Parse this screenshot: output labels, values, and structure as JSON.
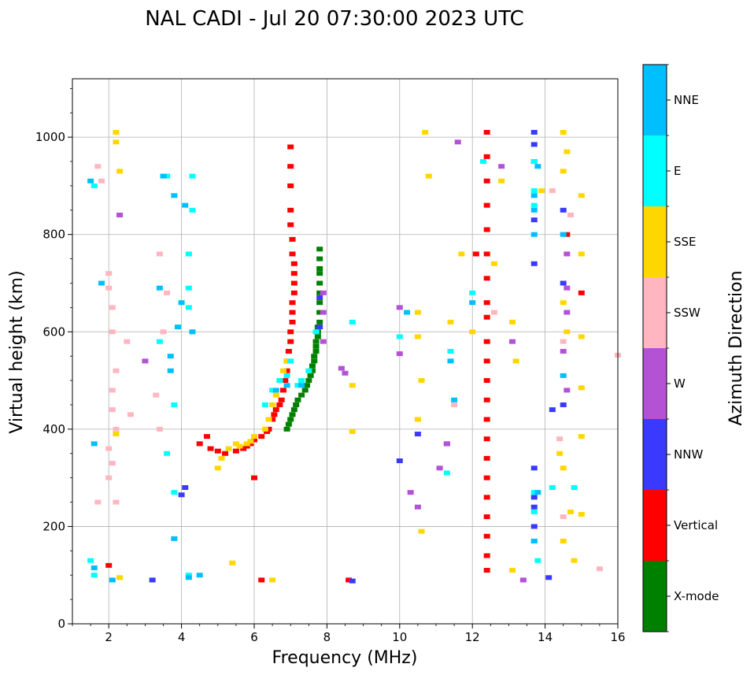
{
  "chart_data": {
    "type": "scatter",
    "title": "NAL CADI - Jul 20 07:30:00 2023 UTC",
    "xlabel": "Frequency (MHz)",
    "ylabel": "Virtual height (km)",
    "xlim": [
      1,
      16
    ],
    "ylim": [
      0,
      1120
    ],
    "xticks": [
      2,
      4,
      6,
      8,
      10,
      12,
      14,
      16
    ],
    "yticks": [
      0,
      200,
      400,
      600,
      800,
      1000
    ],
    "grid": true,
    "colorbar": {
      "title": "Azimuth Direction",
      "placement": "right",
      "categories": [
        {
          "name": "X-mode",
          "color": "#008000"
        },
        {
          "name": "Vertical",
          "color": "#ff0000"
        },
        {
          "name": "NNW",
          "color": "#3a3aff"
        },
        {
          "name": "W",
          "color": "#b452d6"
        },
        {
          "name": "SSW",
          "color": "#ffb6c1"
        },
        {
          "name": "SSE",
          "color": "#ffd700"
        },
        {
          "name": "E",
          "color": "#00ffff"
        },
        {
          "name": "NNE",
          "color": "#00bfff"
        }
      ]
    },
    "series": [
      {
        "name": "X-mode",
        "points": [
          [
            6.9,
            400
          ],
          [
            6.95,
            410
          ],
          [
            7.0,
            420
          ],
          [
            7.05,
            430
          ],
          [
            7.1,
            440
          ],
          [
            7.15,
            450
          ],
          [
            7.2,
            460
          ],
          [
            7.3,
            470
          ],
          [
            7.4,
            480
          ],
          [
            7.45,
            490
          ],
          [
            7.5,
            500
          ],
          [
            7.55,
            510
          ],
          [
            7.6,
            520
          ],
          [
            7.6,
            530
          ],
          [
            7.65,
            540
          ],
          [
            7.65,
            550
          ],
          [
            7.7,
            560
          ],
          [
            7.7,
            570
          ],
          [
            7.7,
            580
          ],
          [
            7.75,
            590
          ],
          [
            7.75,
            600
          ],
          [
            7.75,
            610
          ],
          [
            7.8,
            620
          ],
          [
            7.8,
            640
          ],
          [
            7.8,
            660
          ],
          [
            7.8,
            680
          ],
          [
            7.8,
            700
          ],
          [
            7.8,
            720
          ],
          [
            7.8,
            730
          ],
          [
            7.8,
            750
          ],
          [
            7.8,
            770
          ]
        ]
      },
      {
        "name": "Vertical",
        "points": [
          [
            4.5,
            370
          ],
          [
            4.7,
            385
          ],
          [
            4.8,
            360
          ],
          [
            5.0,
            355
          ],
          [
            5.2,
            350
          ],
          [
            5.5,
            355
          ],
          [
            5.7,
            360
          ],
          [
            5.8,
            365
          ],
          [
            5.9,
            370
          ],
          [
            6.0,
            378
          ],
          [
            6.2,
            385
          ],
          [
            6.35,
            395
          ],
          [
            6.4,
            400
          ],
          [
            6.5,
            420
          ],
          [
            6.55,
            430
          ],
          [
            6.6,
            440
          ],
          [
            6.7,
            450
          ],
          [
            6.75,
            460
          ],
          [
            6.8,
            480
          ],
          [
            6.85,
            500
          ],
          [
            6.9,
            520
          ],
          [
            6.9,
            540
          ],
          [
            6.95,
            560
          ],
          [
            7.0,
            580
          ],
          [
            7.0,
            600
          ],
          [
            7.05,
            620
          ],
          [
            7.05,
            640
          ],
          [
            7.05,
            660
          ],
          [
            7.1,
            680
          ],
          [
            7.1,
            700
          ],
          [
            7.1,
            720
          ],
          [
            7.1,
            740
          ],
          [
            7.05,
            760
          ],
          [
            7.05,
            790
          ],
          [
            7.0,
            820
          ],
          [
            7.0,
            850
          ],
          [
            7.0,
            900
          ],
          [
            7.0,
            940
          ],
          [
            7.0,
            980
          ],
          [
            6.0,
            300
          ],
          [
            12.4,
            1010
          ],
          [
            12.4,
            960
          ],
          [
            12.4,
            910
          ],
          [
            12.4,
            860
          ],
          [
            12.4,
            810
          ],
          [
            12.4,
            760
          ],
          [
            12.4,
            710
          ],
          [
            12.4,
            660
          ],
          [
            12.4,
            630
          ],
          [
            12.4,
            580
          ],
          [
            12.4,
            540
          ],
          [
            12.4,
            500
          ],
          [
            12.4,
            460
          ],
          [
            12.4,
            420
          ],
          [
            12.4,
            380
          ],
          [
            12.4,
            340
          ],
          [
            12.4,
            300
          ],
          [
            12.4,
            260
          ],
          [
            12.4,
            220
          ],
          [
            12.4,
            180
          ],
          [
            12.4,
            140
          ],
          [
            12.4,
            110
          ],
          [
            15.0,
            680
          ],
          [
            14.6,
            800
          ],
          [
            8.6,
            90
          ],
          [
            2.0,
            120
          ],
          [
            6.2,
            90
          ],
          [
            12.1,
            760
          ]
        ]
      },
      {
        "name": "NNW",
        "points": [
          [
            4.0,
            265
          ],
          [
            4.1,
            280
          ],
          [
            13.7,
            1010
          ],
          [
            13.7,
            985
          ],
          [
            13.7,
            950
          ],
          [
            13.7,
            830
          ],
          [
            13.7,
            740
          ],
          [
            13.7,
            320
          ],
          [
            13.7,
            260
          ],
          [
            13.7,
            240
          ],
          [
            13.7,
            200
          ],
          [
            14.5,
            850
          ],
          [
            14.5,
            700
          ],
          [
            14.5,
            450
          ],
          [
            14.2,
            440
          ],
          [
            14.1,
            95
          ],
          [
            10.5,
            390
          ],
          [
            11.3,
            370
          ],
          [
            8.7,
            88
          ],
          [
            10.0,
            335
          ],
          [
            3.2,
            90
          ],
          [
            7.8,
            670
          ],
          [
            7.8,
            610
          ]
        ]
      },
      {
        "name": "W",
        "points": [
          [
            7.9,
            680
          ],
          [
            7.9,
            640
          ],
          [
            7.9,
            580
          ],
          [
            8.4,
            525
          ],
          [
            8.5,
            515
          ],
          [
            10.0,
            650
          ],
          [
            10.0,
            555
          ],
          [
            10.3,
            270
          ],
          [
            10.5,
            240
          ],
          [
            11.3,
            370
          ],
          [
            11.1,
            320
          ],
          [
            12.8,
            940
          ],
          [
            13.1,
            580
          ],
          [
            14.6,
            760
          ],
          [
            14.6,
            690
          ],
          [
            14.6,
            640
          ],
          [
            14.5,
            560
          ],
          [
            14.6,
            480
          ],
          [
            13.4,
            90
          ],
          [
            11.6,
            990
          ],
          [
            2.3,
            840
          ],
          [
            3.0,
            540
          ]
        ]
      },
      {
        "name": "SSW",
        "points": [
          [
            1.7,
            940
          ],
          [
            1.8,
            910
          ],
          [
            2.0,
            720
          ],
          [
            2.0,
            690
          ],
          [
            2.1,
            650
          ],
          [
            2.1,
            600
          ],
          [
            2.2,
            520
          ],
          [
            2.1,
            480
          ],
          [
            2.1,
            440
          ],
          [
            2.2,
            400
          ],
          [
            2.0,
            360
          ],
          [
            2.1,
            330
          ],
          [
            2.0,
            300
          ],
          [
            2.2,
            250
          ],
          [
            3.4,
            400
          ],
          [
            3.3,
            470
          ],
          [
            3.5,
            600
          ],
          [
            3.4,
            760
          ],
          [
            3.6,
            680
          ],
          [
            1.7,
            250
          ],
          [
            2.5,
            580
          ],
          [
            2.6,
            430
          ],
          [
            14.5,
            580
          ],
          [
            14.4,
            380
          ],
          [
            14.7,
            840
          ],
          [
            14.5,
            220
          ],
          [
            15.5,
            113
          ],
          [
            16.0,
            552
          ],
          [
            14.2,
            890
          ],
          [
            12.6,
            640
          ],
          [
            11.5,
            450
          ]
        ]
      },
      {
        "name": "SSE",
        "points": [
          [
            5.9,
            375
          ],
          [
            6.0,
            385
          ],
          [
            5.8,
            370
          ],
          [
            5.6,
            365
          ],
          [
            5.5,
            370
          ],
          [
            5.3,
            360
          ],
          [
            5.1,
            340
          ],
          [
            5.0,
            320
          ],
          [
            6.3,
            400
          ],
          [
            6.4,
            420
          ],
          [
            6.5,
            450
          ],
          [
            6.6,
            470
          ],
          [
            6.7,
            500
          ],
          [
            6.8,
            520
          ],
          [
            6.9,
            540
          ],
          [
            2.2,
            1010
          ],
          [
            2.2,
            990
          ],
          [
            2.3,
            930
          ],
          [
            2.2,
            390
          ],
          [
            2.3,
            95
          ],
          [
            10.7,
            1010
          ],
          [
            10.8,
            920
          ],
          [
            10.5,
            640
          ],
          [
            10.5,
            590
          ],
          [
            10.6,
            500
          ],
          [
            10.5,
            420
          ],
          [
            10.6,
            190
          ],
          [
            11.4,
            620
          ],
          [
            11.7,
            760
          ],
          [
            12.0,
            600
          ],
          [
            12.8,
            910
          ],
          [
            12.6,
            740
          ],
          [
            13.1,
            620
          ],
          [
            13.2,
            540
          ],
          [
            13.1,
            110
          ],
          [
            13.9,
            890
          ],
          [
            14.5,
            1010
          ],
          [
            14.6,
            970
          ],
          [
            14.5,
            930
          ],
          [
            14.5,
            660
          ],
          [
            14.6,
            600
          ],
          [
            14.4,
            350
          ],
          [
            14.5,
            320
          ],
          [
            14.5,
            170
          ],
          [
            14.7,
            230
          ],
          [
            15.0,
            880
          ],
          [
            15.0,
            760
          ],
          [
            15.0,
            590
          ],
          [
            15.0,
            485
          ],
          [
            15.0,
            385
          ],
          [
            15.0,
            225
          ],
          [
            14.8,
            130
          ],
          [
            8.7,
            490
          ],
          [
            8.7,
            395
          ],
          [
            5.4,
            125
          ],
          [
            6.5,
            90
          ]
        ]
      },
      {
        "name": "E",
        "points": [
          [
            6.3,
            450
          ],
          [
            6.5,
            480
          ],
          [
            6.7,
            500
          ],
          [
            6.9,
            510
          ],
          [
            7.0,
            540
          ],
          [
            7.2,
            490
          ],
          [
            7.3,
            500
          ],
          [
            7.5,
            520
          ],
          [
            7.7,
            600
          ],
          [
            3.6,
            920
          ],
          [
            4.3,
            920
          ],
          [
            4.3,
            850
          ],
          [
            4.2,
            760
          ],
          [
            4.2,
            690
          ],
          [
            4.2,
            650
          ],
          [
            3.4,
            580
          ],
          [
            3.8,
            450
          ],
          [
            3.6,
            350
          ],
          [
            3.8,
            270
          ],
          [
            4.2,
            100
          ],
          [
            1.6,
            100
          ],
          [
            1.5,
            130
          ],
          [
            1.6,
            900
          ],
          [
            13.7,
            950
          ],
          [
            13.7,
            890
          ],
          [
            13.7,
            860
          ],
          [
            13.7,
            270
          ],
          [
            13.7,
            230
          ],
          [
            13.7,
            170
          ],
          [
            13.8,
            130
          ],
          [
            14.2,
            280
          ],
          [
            14.8,
            280
          ],
          [
            11.4,
            560
          ],
          [
            11.3,
            310
          ],
          [
            12.0,
            680
          ],
          [
            8.7,
            620
          ],
          [
            10.0,
            590
          ],
          [
            12.3,
            950
          ]
        ]
      },
      {
        "name": "NNE",
        "points": [
          [
            3.7,
            550
          ],
          [
            3.7,
            520
          ],
          [
            3.5,
            920
          ],
          [
            3.8,
            880
          ],
          [
            4.1,
            860
          ],
          [
            3.4,
            690
          ],
          [
            3.9,
            610
          ],
          [
            4.3,
            600
          ],
          [
            6.6,
            480
          ],
          [
            6.9,
            490
          ],
          [
            7.3,
            490
          ],
          [
            1.5,
            910
          ],
          [
            1.8,
            700
          ],
          [
            1.6,
            370
          ],
          [
            2.1,
            90
          ],
          [
            1.6,
            115
          ],
          [
            4.0,
            660
          ],
          [
            3.8,
            175
          ],
          [
            13.8,
            940
          ],
          [
            13.7,
            880
          ],
          [
            13.7,
            850
          ],
          [
            13.7,
            800
          ],
          [
            13.8,
            270
          ],
          [
            13.7,
            170
          ],
          [
            12.0,
            660
          ],
          [
            11.4,
            540
          ],
          [
            11.5,
            460
          ],
          [
            10.2,
            640
          ],
          [
            14.5,
            800
          ],
          [
            14.5,
            510
          ],
          [
            4.2,
            95
          ],
          [
            4.5,
            100
          ]
        ]
      }
    ]
  }
}
